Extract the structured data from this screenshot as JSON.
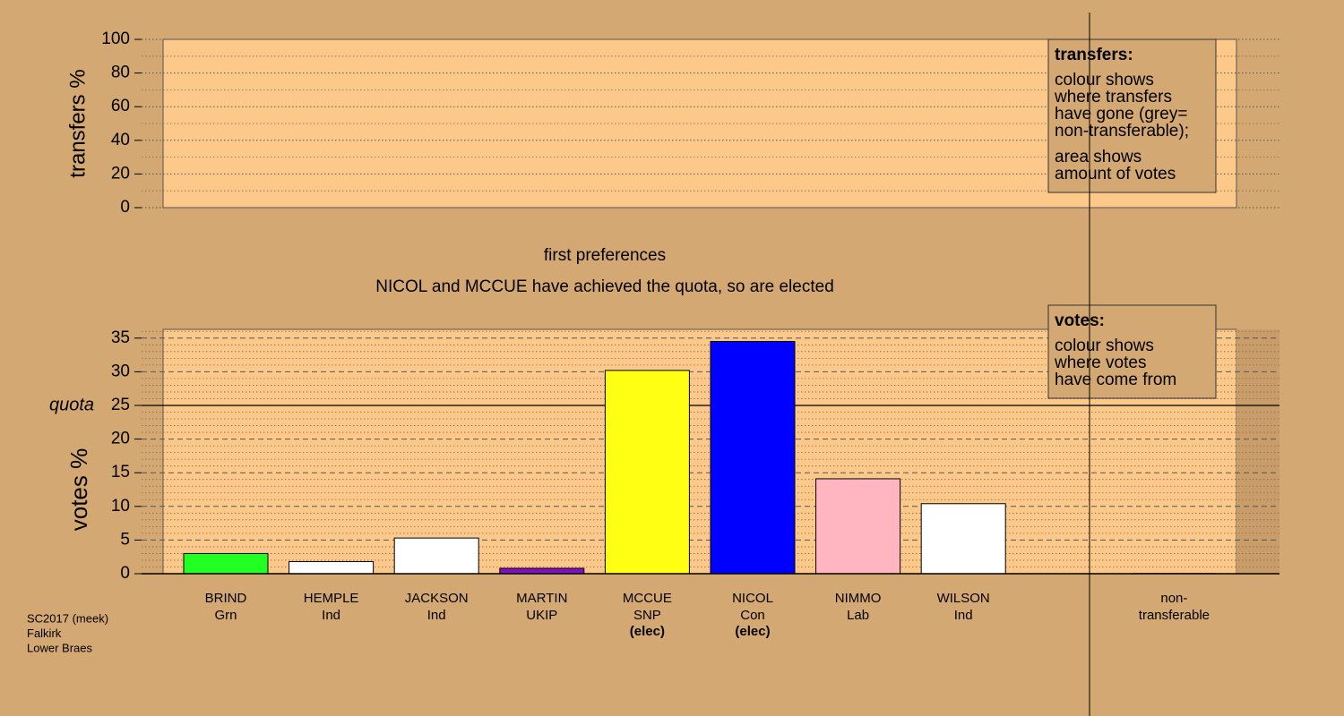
{
  "chart_data": [
    {
      "type": "bar",
      "ylabel": "transfers %",
      "ylim": [
        0,
        100
      ],
      "yticks": [
        0,
        20,
        40,
        60,
        80,
        100
      ],
      "minor_yticks": [
        10,
        30,
        50,
        70,
        90
      ],
      "grid": true,
      "grid_style": "dotted",
      "legend": {
        "title": "transfers:",
        "paragraphs": [
          [
            "colour shows",
            "where transfers",
            "have gone (grey=",
            "non-transferable);"
          ],
          [
            "area shows",
            "amount of votes"
          ]
        ]
      }
    },
    {
      "type": "bar",
      "title": "first preferences",
      "subtitle": "NICOL and MCCUE have achieved the quota, so are elected",
      "ylabel": "votes %",
      "categories": [
        "BRIND",
        "HEMPLE",
        "JACKSON",
        "MARTIN",
        "MCCUE",
        "NICOL",
        "NIMMO",
        "WILSON"
      ],
      "parties": [
        "Grn",
        "Ind",
        "Ind",
        "UKIP",
        "SNP",
        "Con",
        "Lab",
        "Ind"
      ],
      "notes": [
        null,
        null,
        null,
        null,
        "(elec)",
        "(elec)",
        null,
        null
      ],
      "values": [
        3.0,
        1.8,
        5.3,
        0.8,
        30.2,
        34.5,
        14.1,
        10.4
      ],
      "colors": [
        "#22ff22",
        "#ffffff",
        "#ffffff",
        "#7f10c8",
        "#ffff14",
        "#0000ff",
        "#ffb6c1",
        "#ffffff"
      ],
      "nontransferable": {
        "label": [
          "non-",
          "transferable"
        ],
        "value": 0
      },
      "ylim": [
        0,
        36.3
      ],
      "yticks": [
        0,
        5,
        10,
        15,
        20,
        25,
        30,
        35
      ],
      "minor_yticks": [
        1,
        2,
        3,
        4,
        6,
        7,
        8,
        9,
        11,
        12,
        13,
        14,
        16,
        17,
        18,
        19,
        21,
        22,
        23,
        24,
        26,
        27,
        28,
        29,
        31,
        32,
        33,
        34,
        36
      ],
      "grid": true,
      "grid_style": "dashed",
      "quota": {
        "value": 25,
        "label": "quota"
      },
      "legend": {
        "title": "votes:",
        "paragraphs": [
          [
            "colour shows",
            "where votes",
            "have come from"
          ]
        ]
      }
    }
  ],
  "footnote": [
    "SC2017 (meek)",
    "Falkirk",
    "Lower Braes"
  ]
}
